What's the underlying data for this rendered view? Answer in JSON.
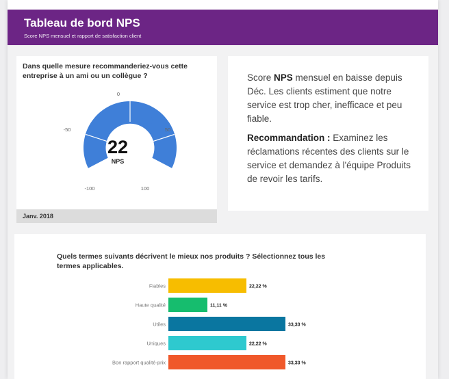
{
  "header": {
    "title": "Tableau de bord NPS",
    "subtitle": "Score NPS mensuel et rapport de satisfaction client"
  },
  "gauge": {
    "question": "Dans quelle mesure recommanderiez-vous cette entreprise à un ami ou un collègue ?",
    "value": "22",
    "unit": "NPS",
    "range": [
      -100,
      100
    ],
    "tick_labels": [
      "-100",
      "-50",
      "0",
      "50",
      "100"
    ],
    "period": "Janv. 2018",
    "color": "#3f7fd8"
  },
  "summary": {
    "p1_pre": "Score ",
    "p1_bold": "NPS",
    "p1_post": " mensuel en baisse depuis Déc. Les clients estiment que notre service est trop cher, inefficace et peu fiable.",
    "p2_bold": "Recommandation :",
    "p2_post": " Examinez les réclamations récentes des clients sur le service et demandez à l'équipe Produits de revoir les tarifs."
  },
  "bar_question": "Quels termes suivants décrivent le mieux nos produits ? Sélectionnez tous les termes applicables.",
  "chart_data": {
    "type": "bar",
    "orientation": "horizontal",
    "categories": [
      "Fiables",
      "Haute qualité",
      "Utiles",
      "Uniques",
      "Bon rapport qualité-prix"
    ],
    "values": [
      22.22,
      11.11,
      33.33,
      22.22,
      33.33
    ],
    "labels": [
      "22,22 %",
      "11,11 %",
      "33,33 %",
      "22,22 %",
      "33,33 %"
    ],
    "colors": [
      "#f7bd00",
      "#16bd6e",
      "#0a76a0",
      "#2ec9cf",
      "#f0582a"
    ],
    "xlim": [
      0,
      33.33
    ]
  }
}
